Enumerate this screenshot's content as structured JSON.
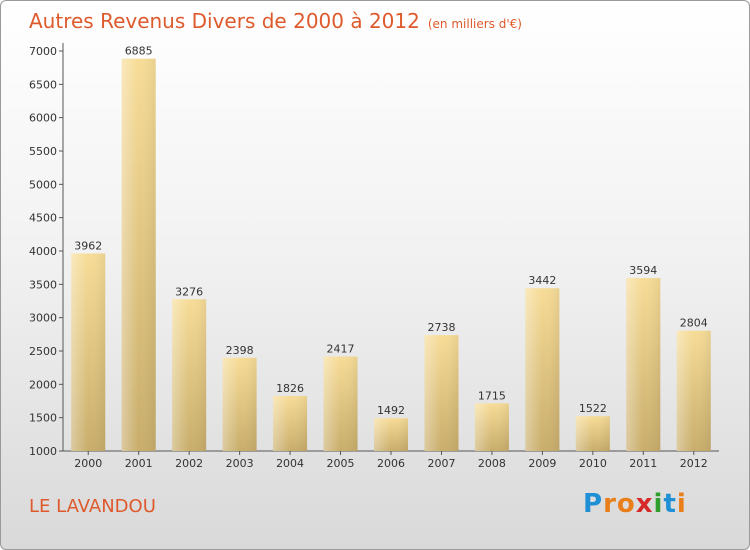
{
  "header": {
    "title": "Autres Revenus Divers de 2000 à 2012",
    "subtitle": "(en milliers d'€)"
  },
  "footer": {
    "place": "LE LAVANDOU"
  },
  "brand": {
    "letters": [
      "P",
      "r",
      "o",
      "x",
      "i",
      "t",
      "i"
    ],
    "letter_colors": [
      "#1f8fd6",
      "#e87f1a",
      "#e87f1a",
      "#d62a2a",
      "#2f9e2f",
      "#1f8fd6",
      "#e87f1a"
    ]
  },
  "colors": {
    "title": "#de5a2c",
    "bar_light": "#f7dc97",
    "bar_dark": "#c8ad6b",
    "axis": "#555555"
  },
  "chart_data": {
    "type": "bar",
    "title": "Autres Revenus Divers de 2000 à 2012",
    "subtitle": "(en milliers d'€)",
    "xlabel": "",
    "ylabel": "",
    "categories": [
      "2000",
      "2001",
      "2002",
      "2003",
      "2004",
      "2005",
      "2006",
      "2007",
      "2008",
      "2009",
      "2010",
      "2011",
      "2012"
    ],
    "values": [
      3962,
      6885,
      3276,
      2398,
      1826,
      2417,
      1492,
      2738,
      1715,
      3442,
      1522,
      3594,
      2804
    ],
    "ylim": [
      1000,
      7000
    ],
    "yticks": [
      1000,
      1500,
      2000,
      2500,
      3000,
      3500,
      4000,
      4500,
      5000,
      5500,
      6000,
      6500,
      7000
    ],
    "grid": false,
    "legend": "none"
  }
}
